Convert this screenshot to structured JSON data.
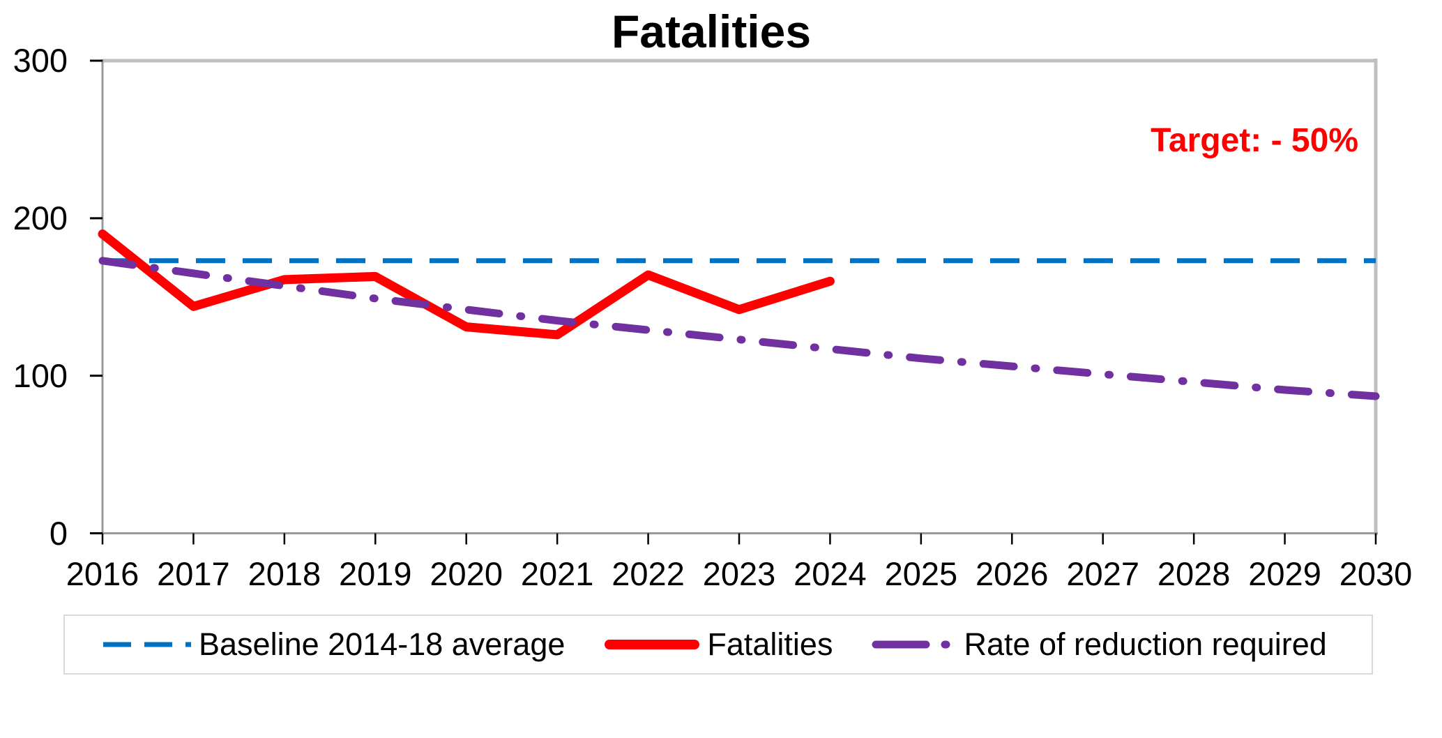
{
  "chart_data": {
    "type": "line",
    "title": "Fatalities",
    "target_label": "Target: - 50%",
    "target_color": "#FF0000",
    "xlim": [
      2016,
      2030
    ],
    "ylim": [
      0,
      300
    ],
    "y_ticks": [
      0,
      100,
      200,
      300
    ],
    "x": [
      2016,
      2017,
      2018,
      2019,
      2020,
      2021,
      2022,
      2023,
      2024,
      2025,
      2026,
      2027,
      2028,
      2029,
      2030
    ],
    "x_tick_labels": [
      "2016",
      "2017",
      "2018",
      "2019",
      "2020",
      "2021",
      "2022",
      "2023",
      "2024",
      "2025",
      "2026",
      "2027",
      "2028",
      "2029",
      "2030"
    ],
    "grid": "off",
    "legend_position": "bottom",
    "series": [
      {
        "id": "baseline",
        "name": "Baseline 2014-18 average",
        "color": "#0070C0",
        "style": "dashed",
        "x": [
          2016,
          2030
        ],
        "values": [
          173,
          173
        ]
      },
      {
        "id": "fatalities",
        "name": "Fatalities",
        "color": "#FF0000",
        "style": "solid",
        "x": [
          2016,
          2017,
          2018,
          2019,
          2020,
          2021,
          2022,
          2023,
          2024
        ],
        "values": [
          190,
          144,
          161,
          163,
          131,
          126,
          164,
          142,
          160
        ]
      },
      {
        "id": "reduction",
        "name": "Rate of reduction required",
        "color": "#7030A0",
        "style": "dash_dot",
        "x": [
          2016,
          2017,
          2018,
          2019,
          2020,
          2021,
          2022,
          2023,
          2024,
          2025,
          2026,
          2027,
          2028,
          2029,
          2030
        ],
        "values": [
          173,
          165,
          157,
          149,
          142,
          135,
          129,
          123,
          117,
          111,
          106,
          101,
          96,
          91,
          87
        ]
      }
    ]
  }
}
